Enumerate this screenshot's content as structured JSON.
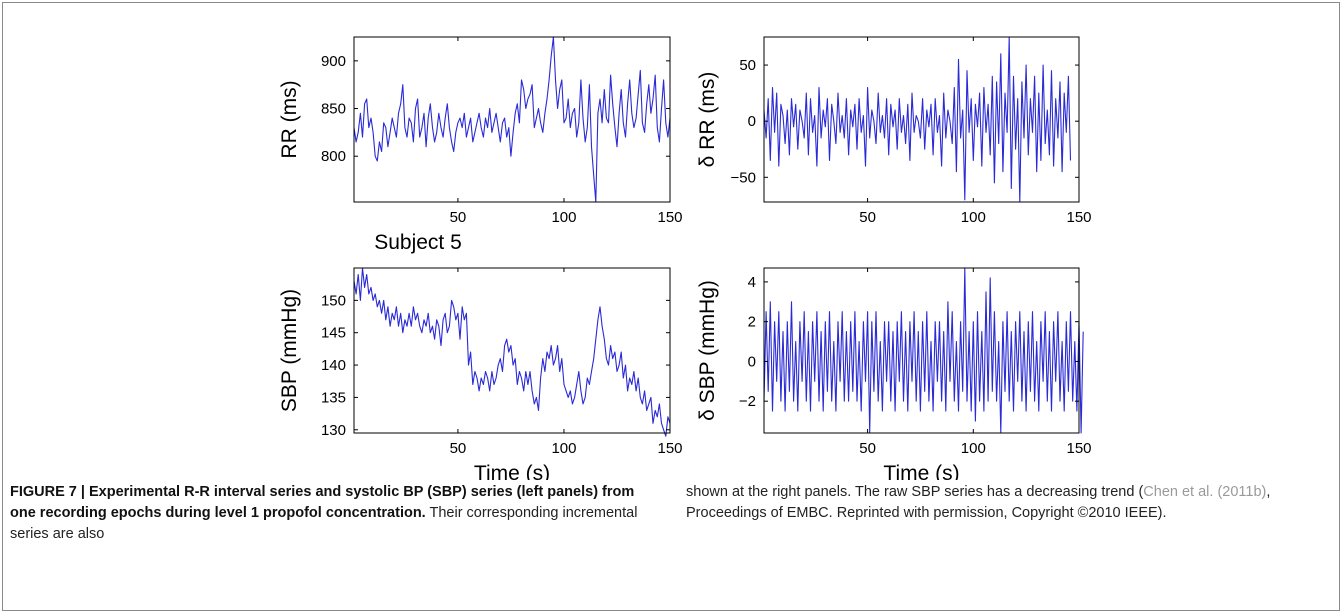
{
  "colors": {
    "series": "#2a2ad6",
    "border": "#8a8a8a",
    "citation": "#9a9a9a"
  },
  "chart_data": [
    {
      "id": "rr",
      "type": "line",
      "xlim": [
        1,
        150
      ],
      "ylim": [
        752,
        925
      ],
      "xticks": [
        50,
        100,
        150
      ],
      "yticks": [
        800,
        850,
        900
      ],
      "ylabel": "RR (ms)",
      "xlabel": "",
      "grid": false,
      "y": [
        830,
        815,
        825,
        845,
        820,
        855,
        860,
        830,
        840,
        825,
        800,
        795,
        815,
        805,
        835,
        830,
        810,
        825,
        840,
        830,
        820,
        845,
        855,
        875,
        830,
        820,
        840,
        835,
        815,
        850,
        860,
        820,
        830,
        845,
        810,
        840,
        855,
        830,
        815,
        825,
        845,
        830,
        820,
        840,
        855,
        830,
        815,
        805,
        825,
        835,
        840,
        830,
        845,
        820,
        830,
        840,
        815,
        825,
        835,
        845,
        830,
        820,
        840,
        830,
        850,
        825,
        835,
        845,
        830,
        815,
        835,
        840,
        820,
        830,
        800,
        825,
        845,
        855,
        835,
        880,
        870,
        850,
        860,
        865,
        875,
        830,
        840,
        850,
        835,
        825,
        845,
        860,
        880,
        905,
        925,
        880,
        850,
        870,
        880,
        835,
        840,
        860,
        830,
        845,
        850,
        820,
        835,
        880,
        840,
        815,
        830,
        875,
        810,
        780,
        752,
        845,
        860,
        835,
        870,
        840,
        835,
        885,
        855,
        830,
        810,
        845,
        870,
        835,
        820,
        855,
        880,
        845,
        830,
        840,
        865,
        890,
        835,
        825,
        855,
        875,
        845,
        860,
        885,
        830,
        815,
        850,
        880,
        835,
        820,
        840
      ]
    },
    {
      "id": "drr",
      "type": "line",
      "xlim": [
        1,
        150
      ],
      "ylim": [
        -72,
        75
      ],
      "xticks": [
        50,
        100,
        150
      ],
      "yticks": [
        -50,
        0,
        50
      ],
      "ylabel": "δ RR (ms)",
      "xlabel": "",
      "grid": false,
      "y": [
        10,
        -15,
        20,
        -35,
        30,
        -10,
        25,
        -40,
        15,
        5,
        -20,
        10,
        -30,
        20,
        -5,
        15,
        -25,
        10,
        0,
        -15,
        25,
        -30,
        20,
        -10,
        5,
        -40,
        30,
        -15,
        10,
        -5,
        20,
        -35,
        15,
        0,
        -20,
        25,
        -10,
        5,
        -15,
        20,
        -30,
        10,
        -5,
        15,
        -25,
        20,
        -10,
        5,
        -40,
        30,
        -15,
        10,
        0,
        -20,
        25,
        -10,
        5,
        -15,
        20,
        -30,
        15,
        -5,
        10,
        -25,
        20,
        -10,
        5,
        -20,
        15,
        -35,
        25,
        -10,
        5,
        0,
        -15,
        20,
        -25,
        10,
        -5,
        15,
        -30,
        20,
        -10,
        5,
        -40,
        25,
        -15,
        10,
        0,
        -20,
        30,
        -45,
        55,
        -15,
        10,
        -70,
        45,
        -10,
        20,
        -35,
        15,
        -5,
        25,
        -40,
        30,
        -10,
        15,
        -30,
        40,
        -55,
        35,
        -20,
        60,
        -45,
        25,
        -10,
        75,
        -60,
        40,
        -25,
        20,
        -72,
        35,
        -15,
        50,
        -30,
        20,
        -10,
        40,
        -45,
        25,
        -35,
        50,
        -20,
        10,
        -30,
        45,
        -40,
        20,
        -15,
        35,
        -45,
        25,
        -10,
        40,
        -35
      ]
    },
    {
      "id": "sbp",
      "type": "line",
      "xlim": [
        1,
        150
      ],
      "ylim": [
        129.5,
        155
      ],
      "xticks": [
        50,
        100,
        150
      ],
      "yticks": [
        130,
        135,
        140,
        145,
        150
      ],
      "ylabel": "SBP (mmHg)",
      "xlabel": "Time (s)",
      "grid": false,
      "y": [
        153,
        151,
        154,
        150,
        155,
        152,
        154,
        151,
        152,
        150,
        151,
        149,
        150,
        148,
        150,
        147,
        149,
        146,
        148,
        147,
        149,
        146,
        148,
        145,
        147,
        146,
        148,
        146,
        149,
        147,
        148,
        146,
        145,
        147,
        146,
        148,
        145,
        146,
        144,
        147,
        146,
        143,
        147,
        148,
        145,
        146,
        150,
        149,
        147,
        148,
        144,
        149,
        147,
        148,
        140,
        142,
        137,
        139,
        138,
        136,
        138,
        137,
        139,
        138,
        136,
        139,
        137,
        138,
        140,
        141,
        139,
        143,
        144,
        142,
        143,
        140,
        141,
        137,
        139,
        138,
        136,
        139,
        137,
        139,
        136,
        134,
        135,
        133,
        138,
        141,
        139,
        142,
        141,
        143,
        140,
        141,
        143,
        139,
        141,
        137,
        136,
        135,
        136,
        134,
        135,
        137,
        139,
        136,
        134,
        135,
        138,
        137,
        139,
        141,
        144,
        147,
        149,
        146,
        144,
        141,
        140,
        143,
        141,
        142,
        139,
        140,
        142,
        138,
        140,
        136,
        138,
        137,
        139,
        136,
        138,
        135,
        134,
        136,
        133,
        134,
        135,
        131,
        133,
        132,
        134,
        131,
        130,
        129,
        132,
        131
      ]
    },
    {
      "id": "dsbp",
      "type": "line",
      "xlim": [
        1,
        150
      ],
      "ylim": [
        -3.6,
        4.7
      ],
      "xticks": [
        50,
        100,
        150
      ],
      "yticks": [
        -2,
        0,
        2,
        4
      ],
      "ylabel": "δ SBP (mmHg)",
      "xlabel": "Time (s)",
      "grid": false,
      "y": [
        -2,
        2.5,
        -1.5,
        3,
        -2.5,
        2,
        -1,
        2.5,
        -2,
        1.5,
        -2.5,
        2,
        -1.5,
        3,
        -2,
        1,
        -2.5,
        2,
        -1,
        2.5,
        -2,
        1.5,
        -2.5,
        2,
        -1,
        2.5,
        -2,
        1.5,
        -2.5,
        2,
        -1.5,
        2.5,
        -2,
        1,
        -2.5,
        2,
        -1,
        2.5,
        -2,
        1.5,
        -2,
        2,
        -1.5,
        2.5,
        -2,
        1,
        -2.5,
        2,
        -1,
        2.5,
        -3.6,
        2,
        -1.5,
        2.5,
        -2,
        1,
        -2.5,
        2,
        -1,
        2,
        -2,
        1.5,
        -2.5,
        2,
        -1,
        2.5,
        -2,
        1.5,
        -2.5,
        2,
        -1,
        2.5,
        -2,
        1.5,
        -2.5,
        2,
        -1.5,
        2.5,
        -2,
        1,
        -2.5,
        2,
        -1,
        2,
        -2,
        1.5,
        -2.5,
        3,
        -1,
        2.5,
        -2,
        1,
        -2.5,
        2,
        -1.5,
        4.7,
        -2,
        1.5,
        -2.5,
        2,
        -3,
        2.5,
        -2,
        1.5,
        -2.5,
        3.5,
        -2,
        4.2,
        -1.5,
        2.5,
        -2,
        1,
        -3.6,
        2,
        -1.5,
        2.5,
        -2,
        1.5,
        -2.5,
        2,
        -1,
        2.5,
        -2,
        1.5,
        -2.5,
        2,
        -1.5,
        2.5,
        -2,
        1,
        -2.5,
        2,
        -1,
        2.5,
        -2,
        1.5,
        -2.5,
        2,
        -1,
        2.5,
        -2,
        1,
        -2.5,
        2,
        -1.5,
        2.5,
        -2,
        1,
        -2.5,
        2,
        -3.6,
        1.5
      ]
    }
  ],
  "subject_label": "Subject 5",
  "caption": {
    "figure_label": "FIGURE 7 | ",
    "bold_text": "Experimental R-R interval series and systolic BP (SBP) series (left panels) from one recording epochs during level 1 propofol concentration.",
    "body_left": " Their corresponding incremental series are also",
    "body_right_1": "shown at the right panels. The raw SBP series has a decreasing trend (",
    "citation": "Chen et al. (2011b)",
    "body_right_2": ", Proceedings of EMBC. Reprinted with permission, Copyright ©2010 IEEE)."
  }
}
